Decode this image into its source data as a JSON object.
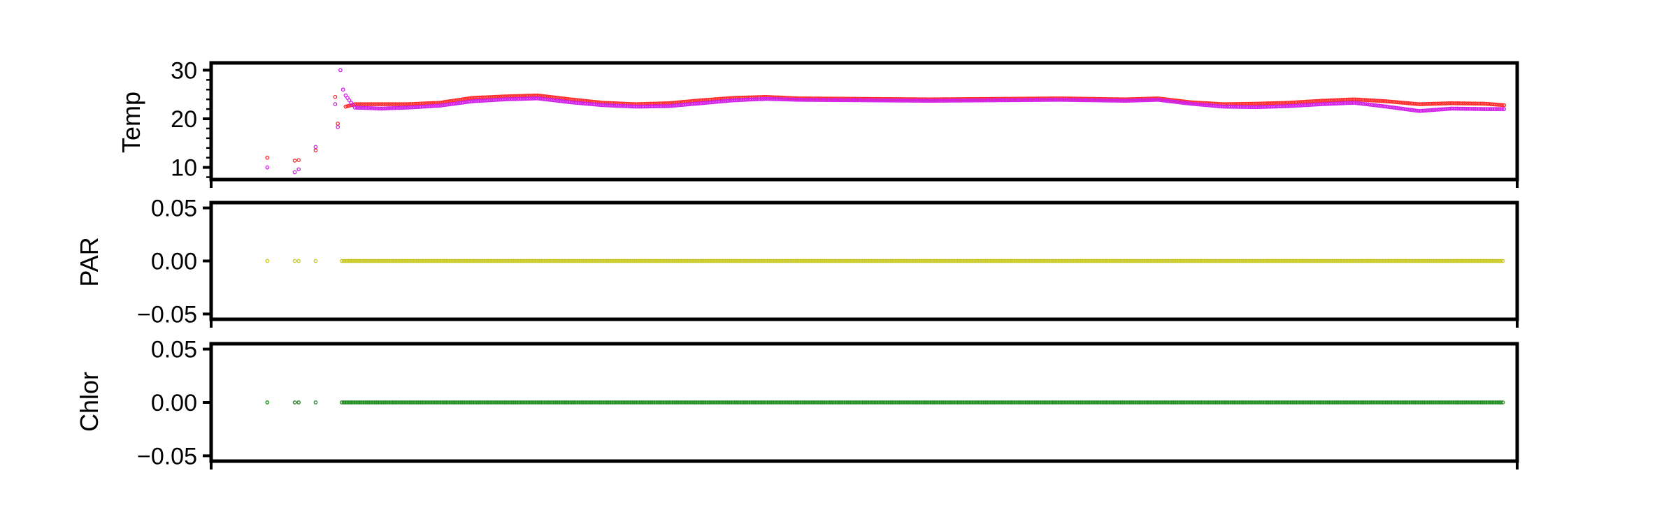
{
  "chart_data": [
    {
      "type": "scatter",
      "ylabel": "Temp",
      "ylim": [
        7.5,
        31.5
      ],
      "yticks": [
        10,
        20,
        30
      ],
      "ytick_labels": [
        "10",
        "20",
        "30"
      ],
      "x_range": [
        0,
        1000
      ],
      "series": [
        {
          "color": "#ff2a2a",
          "points": [
            [
              43,
              12.0
            ],
            [
              64,
              11.4
            ],
            [
              67,
              11.5
            ],
            [
              80,
              13.5
            ],
            [
              95,
              24.5
            ],
            [
              97,
              19.0
            ],
            [
              103,
              22.5
            ],
            [
              110,
              23.0
            ],
            [
              130,
              23.0
            ],
            [
              150,
              23.0
            ],
            [
              175,
              23.3
            ],
            [
              200,
              24.3
            ],
            [
              225,
              24.6
            ],
            [
              250,
              24.8
            ],
            [
              275,
              24.0
            ],
            [
              300,
              23.3
            ],
            [
              325,
              23.0
            ],
            [
              350,
              23.2
            ],
            [
              375,
              23.8
            ],
            [
              400,
              24.3
            ],
            [
              425,
              24.5
            ],
            [
              450,
              24.2
            ],
            [
              500,
              24.1
            ],
            [
              550,
              24.0
            ],
            [
              600,
              24.1
            ],
            [
              650,
              24.2
            ],
            [
              700,
              24.0
            ],
            [
              725,
              24.2
            ],
            [
              750,
              23.4
            ],
            [
              775,
              23.0
            ],
            [
              800,
              23.1
            ],
            [
              825,
              23.3
            ],
            [
              850,
              23.7
            ],
            [
              875,
              24.0
            ],
            [
              900,
              23.6
            ],
            [
              925,
              23.0
            ],
            [
              950,
              23.2
            ],
            [
              975,
              23.1
            ],
            [
              990,
              22.8
            ]
          ]
        },
        {
          "color": "#d020e8",
          "points": [
            [
              43,
              10.0
            ],
            [
              64,
              9.0
            ],
            [
              67,
              9.6
            ],
            [
              80,
              14.2
            ],
            [
              95,
              23.0
            ],
            [
              97,
              18.3
            ],
            [
              99,
              30.0
            ],
            [
              101,
              26.0
            ],
            [
              103,
              24.8
            ],
            [
              110,
              22.3
            ],
            [
              130,
              22.1
            ],
            [
              150,
              22.3
            ],
            [
              175,
              22.7
            ],
            [
              200,
              23.6
            ],
            [
              225,
              24.0
            ],
            [
              250,
              24.2
            ],
            [
              275,
              23.4
            ],
            [
              300,
              22.8
            ],
            [
              325,
              22.5
            ],
            [
              350,
              22.6
            ],
            [
              375,
              23.2
            ],
            [
              400,
              23.8
            ],
            [
              425,
              24.1
            ],
            [
              450,
              23.9
            ],
            [
              500,
              23.8
            ],
            [
              550,
              23.7
            ],
            [
              600,
              23.8
            ],
            [
              650,
              23.9
            ],
            [
              700,
              23.7
            ],
            [
              725,
              23.9
            ],
            [
              750,
              23.1
            ],
            [
              775,
              22.5
            ],
            [
              800,
              22.4
            ],
            [
              825,
              22.6
            ],
            [
              850,
              23.0
            ],
            [
              875,
              23.3
            ],
            [
              900,
              22.5
            ],
            [
              925,
              21.6
            ],
            [
              950,
              22.1
            ],
            [
              975,
              22.0
            ],
            [
              990,
              22.0
            ]
          ]
        }
      ]
    },
    {
      "type": "scatter",
      "ylabel": "PAR",
      "ylim": [
        -0.055,
        0.055
      ],
      "yticks": [
        -0.05,
        0.0,
        0.05
      ],
      "ytick_labels": [
        "−0.05",
        "0.00",
        "0.05"
      ],
      "x_range": [
        0,
        1000
      ],
      "series": [
        {
          "color": "#c8c81e",
          "sparse_x": [
            43,
            64,
            67,
            80
          ],
          "dense_start": 100,
          "dense_end": 990,
          "value": 0.0
        }
      ]
    },
    {
      "type": "scatter",
      "ylabel": "Chlor",
      "ylim": [
        -0.055,
        0.055
      ],
      "yticks": [
        -0.05,
        0.0,
        0.05
      ],
      "ytick_labels": [
        "−0.05",
        "0.00",
        "0.05"
      ],
      "x_range": [
        0,
        1000
      ],
      "series": [
        {
          "color": "#1e8c1e",
          "sparse_x": [
            43,
            64,
            67,
            80
          ],
          "dense_start": 100,
          "dense_end": 990,
          "value": 0.0
        }
      ]
    }
  ]
}
